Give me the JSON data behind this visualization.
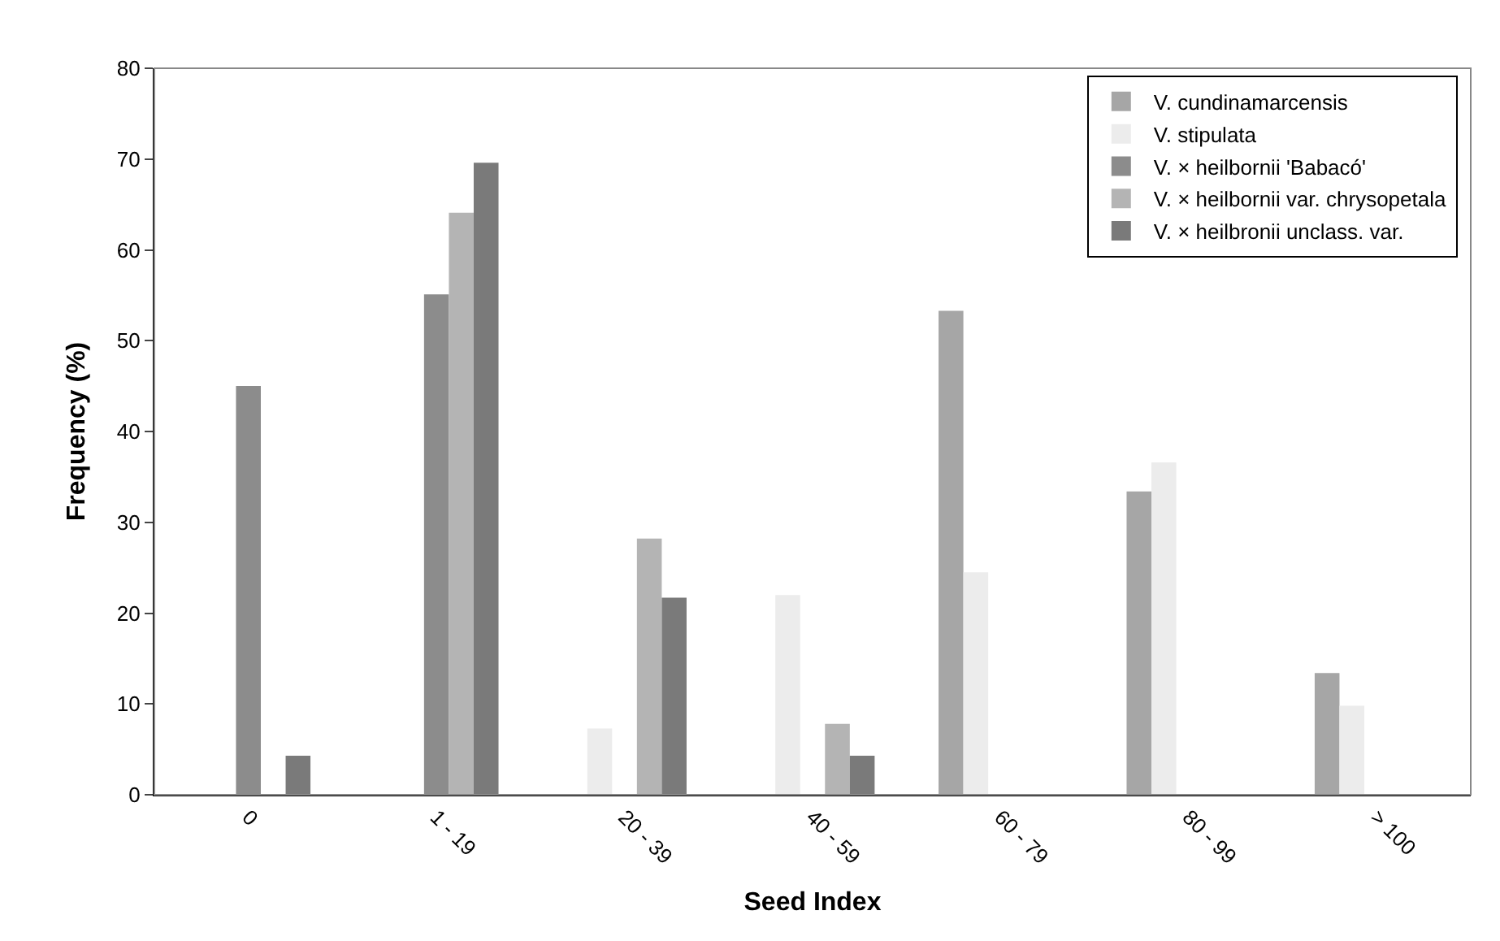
{
  "chart_data": {
    "type": "bar",
    "xlabel": "Seed Index",
    "ylabel": "Frequency (%)",
    "categories": [
      "0",
      "1 - 19",
      "20 - 39",
      "40 - 59",
      "60 - 79",
      "80 - 99",
      "> 100"
    ],
    "series": [
      {
        "name": "V. cundinamarcensis",
        "color": "#a6a6a6",
        "values": [
          null,
          null,
          null,
          null,
          53.3,
          33.4,
          13.4
        ]
      },
      {
        "name": "V. stipulata",
        "color": "#ececec",
        "values": [
          null,
          null,
          7.3,
          22.0,
          24.5,
          36.6,
          9.8
        ]
      },
      {
        "name": "V. × heilbornii 'Babacó'",
        "color": "#8c8c8c",
        "values": [
          45.0,
          55.1,
          null,
          null,
          null,
          null,
          null
        ]
      },
      {
        "name": "V. × heilbornii var. chrysopetala",
        "color": "#b4b4b4",
        "values": [
          null,
          64.1,
          28.2,
          7.8,
          null,
          null,
          null
        ]
      },
      {
        "name": "V. × heilbronii unclass. var.",
        "color": "#7a7a7a",
        "values": [
          4.3,
          69.6,
          21.7,
          4.3,
          null,
          null,
          null
        ]
      }
    ],
    "ylim": [
      0,
      80
    ],
    "yticks": [
      0,
      10,
      20,
      30,
      40,
      50,
      60,
      70,
      80
    ],
    "legend": "top right"
  }
}
